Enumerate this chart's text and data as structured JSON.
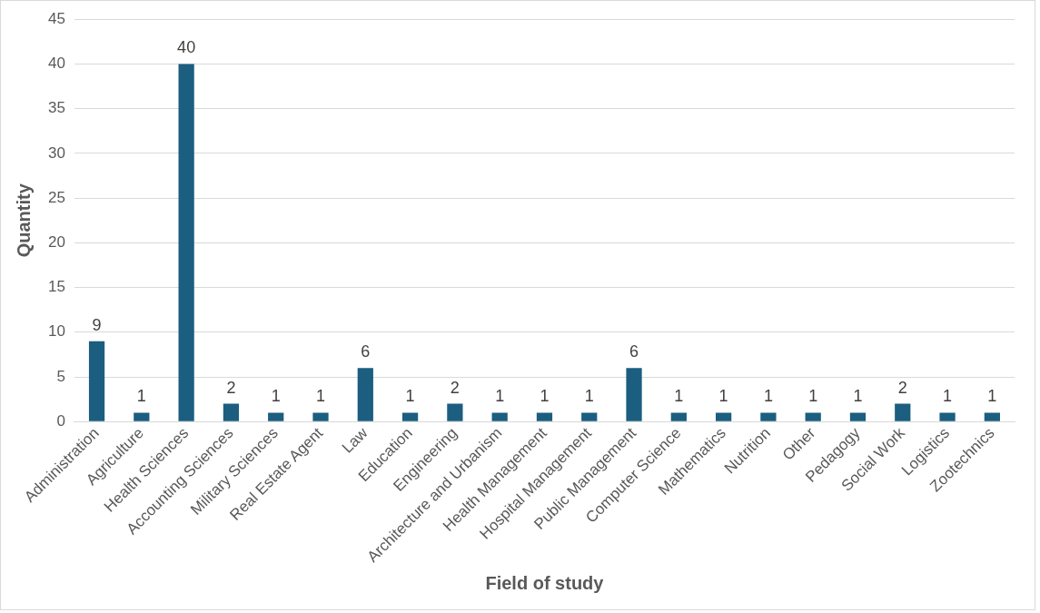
{
  "chart_data": {
    "type": "bar",
    "xlabel": "Field of study",
    "ylabel": "Quantity",
    "categories": [
      "Administration",
      "Agriculture",
      "Health Sciences",
      "Accounting Sciences",
      "Military Sciences",
      "Real Estate Agent",
      "Law",
      "Education",
      "Engineering",
      "Architecture and Urbanism",
      "Health Management",
      "Hospital Management",
      "Public Management",
      "Computer Science",
      "Mathematics",
      "Nutrition",
      "Other",
      "Pedagogy",
      "Social Work",
      "Logistics",
      "Zootechnics"
    ],
    "values": [
      9,
      1,
      40,
      2,
      1,
      1,
      6,
      1,
      2,
      1,
      1,
      1,
      6,
      1,
      1,
      1,
      1,
      1,
      2,
      1,
      1
    ],
    "color": "#1b5e80",
    "ylim": [
      0,
      45
    ],
    "yticks": [
      0,
      5,
      10,
      15,
      20,
      25,
      30,
      35,
      40,
      45
    ],
    "grid": "y",
    "data_labels": true
  }
}
